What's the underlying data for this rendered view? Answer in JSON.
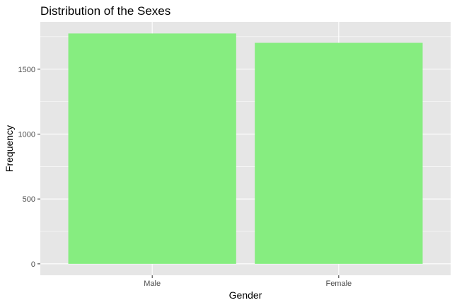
{
  "chart_data": {
    "type": "bar",
    "title": "Distribution of the Sexes",
    "xlabel": "Gender",
    "ylabel": "Frequency",
    "categories": [
      "Male",
      "Female"
    ],
    "values": [
      1775,
      1703
    ],
    "ylim": [
      -88,
      1864
    ],
    "yticks": [
      0,
      500,
      1000,
      1500
    ],
    "ytick_labels": [
      "0",
      "500",
      "1000",
      "1500"
    ],
    "grid": true,
    "legend": "none",
    "colors": {
      "bar": "#86ED80",
      "panel_background": "#E6E6E6",
      "grid_major": "#FFFFFF",
      "tick_text": "#4D4D4D",
      "tick_mark": "#333333"
    }
  }
}
